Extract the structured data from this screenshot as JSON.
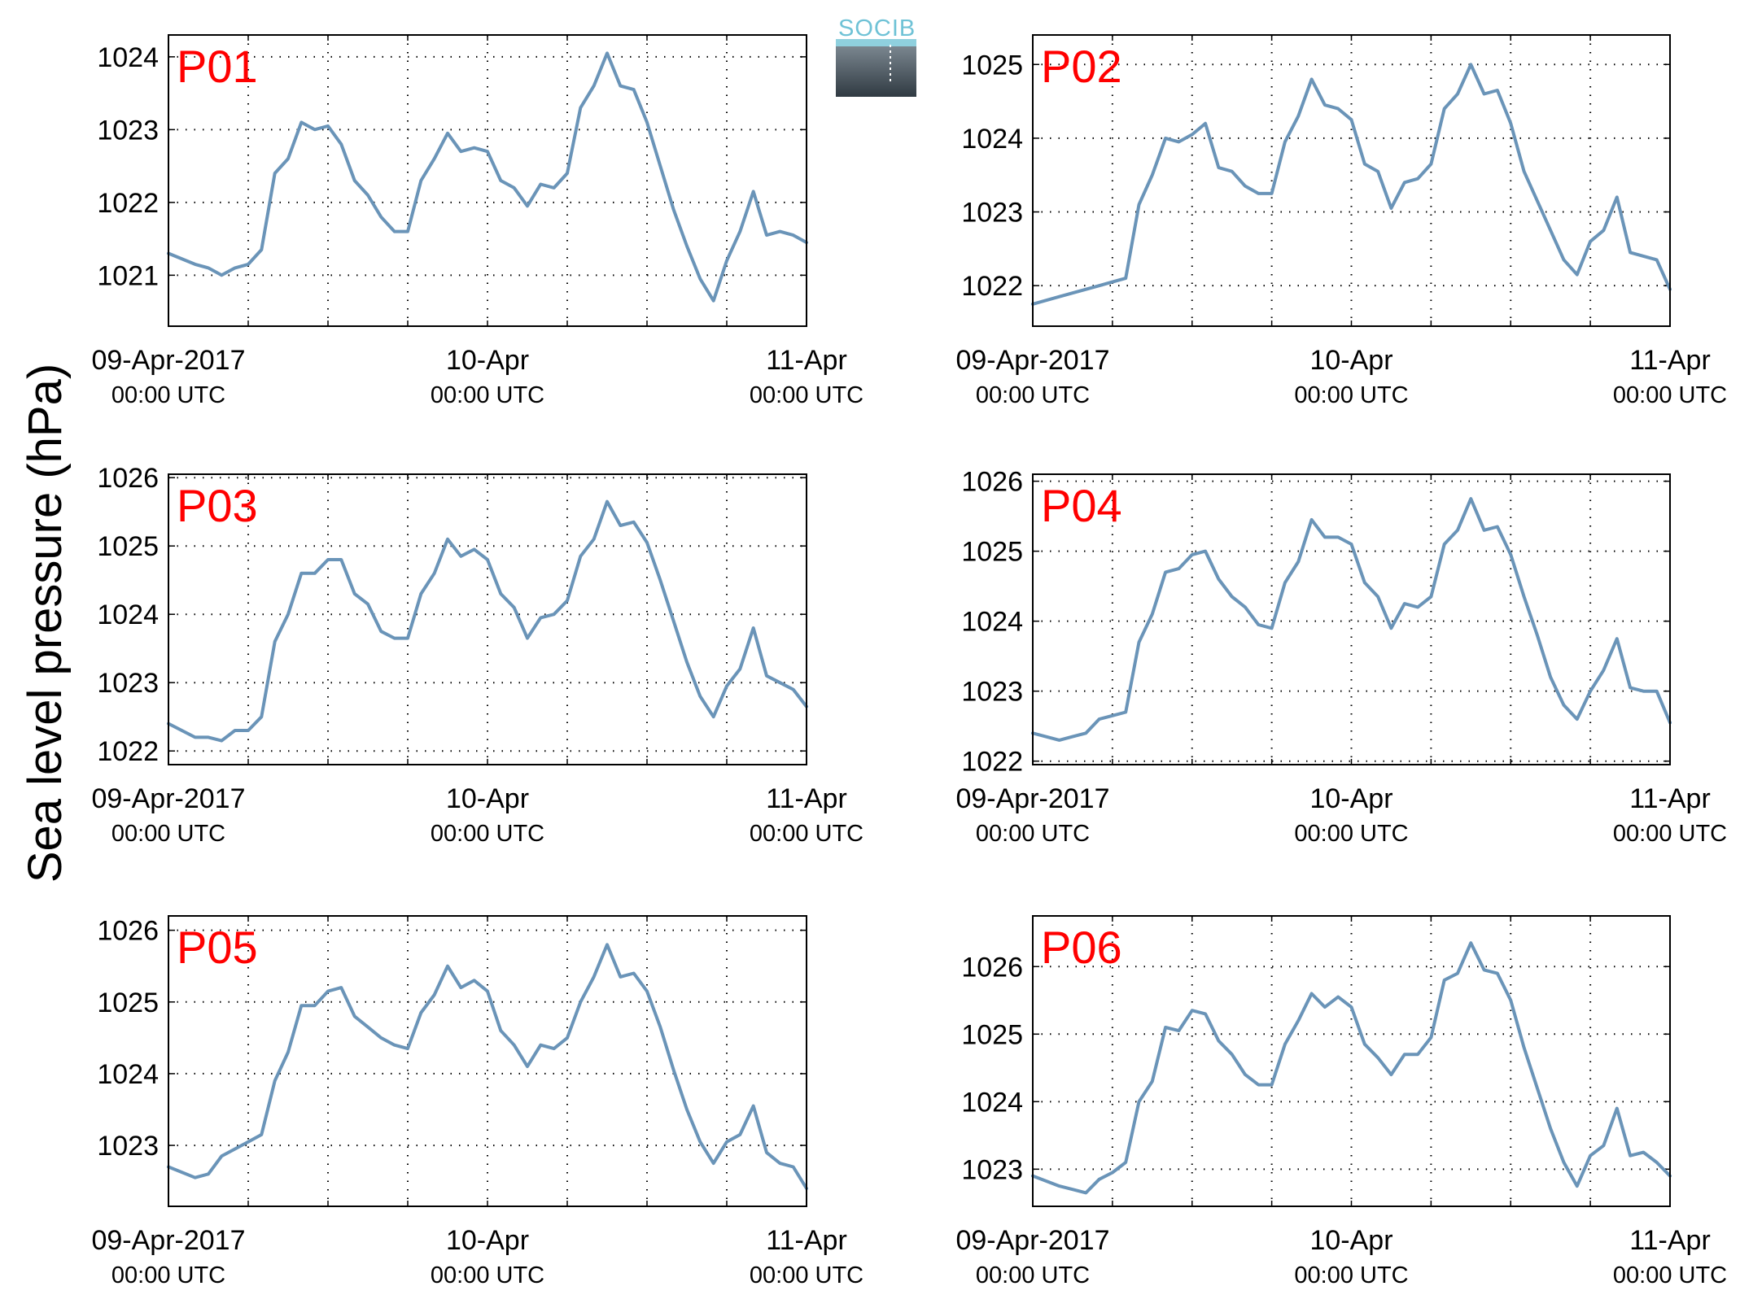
{
  "ylabel": "Sea level pressure (hPa)",
  "logo": {
    "text": "SOCIB"
  },
  "colors": {
    "line": "#6a94b8",
    "label": "#ff0000",
    "grid": "#000000",
    "logo_text": "#6fc2d6"
  },
  "x_ticks": [
    {
      "date": "09-Apr-2017",
      "time": "00:00 UTC"
    },
    {
      "date": "10-Apr",
      "time": "00:00 UTC"
    },
    {
      "date": "11-Apr",
      "time": "00:00 UTC"
    }
  ],
  "chart_data": [
    {
      "type": "line",
      "label": "P01",
      "ylim": [
        1020.3,
        1024.3
      ],
      "yticks": [
        1021,
        1022,
        1023,
        1024
      ],
      "grid": true,
      "x_unit": "hours since 09-Apr-2017 00:00 UTC",
      "x": [
        0,
        2,
        3,
        4,
        5,
        6,
        7,
        8,
        9,
        10,
        11,
        12,
        13,
        14,
        15,
        16,
        17,
        18,
        19,
        20,
        21,
        22,
        23,
        24,
        25,
        26,
        27,
        28,
        29,
        30,
        31,
        32,
        33,
        34,
        35,
        36,
        37,
        38,
        39,
        40,
        41,
        42,
        43,
        44,
        45,
        46,
        47,
        48
      ],
      "y": [
        1021.3,
        1021.15,
        1021.1,
        1021.0,
        1021.1,
        1021.15,
        1021.35,
        1022.4,
        1022.6,
        1023.1,
        1023.0,
        1023.05,
        1022.8,
        1022.3,
        1022.1,
        1021.8,
        1021.6,
        1021.6,
        1022.3,
        1022.6,
        1022.95,
        1022.7,
        1022.75,
        1022.7,
        1022.3,
        1022.2,
        1021.95,
        1022.25,
        1022.2,
        1022.4,
        1023.3,
        1023.6,
        1024.05,
        1023.6,
        1023.55,
        1023.1,
        1022.5,
        1021.9,
        1021.4,
        1020.95,
        1020.65,
        1021.2,
        1021.6,
        1022.15,
        1021.55,
        1021.6,
        1021.55,
        1021.45
      ]
    },
    {
      "type": "line",
      "label": "P02",
      "ylim": [
        1021.45,
        1025.4
      ],
      "yticks": [
        1022,
        1023,
        1024,
        1025
      ],
      "grid": true,
      "x_unit": "hours since 09-Apr-2017 00:00 UTC",
      "x": [
        0,
        2,
        3,
        4,
        5,
        6,
        7,
        8,
        9,
        10,
        11,
        12,
        13,
        14,
        15,
        16,
        17,
        18,
        19,
        20,
        21,
        22,
        23,
        24,
        25,
        26,
        27,
        28,
        29,
        30,
        31,
        32,
        33,
        34,
        35,
        36,
        37,
        38,
        39,
        40,
        41,
        42,
        43,
        44,
        45,
        46,
        47,
        48
      ],
      "y": [
        1021.75,
        1021.85,
        1021.9,
        1021.95,
        1022.0,
        1022.05,
        1022.1,
        1023.1,
        1023.5,
        1024.0,
        1023.95,
        1024.05,
        1024.2,
        1023.6,
        1023.55,
        1023.35,
        1023.25,
        1023.25,
        1023.95,
        1024.3,
        1024.8,
        1024.45,
        1024.4,
        1024.25,
        1023.65,
        1023.55,
        1023.05,
        1023.4,
        1023.45,
        1023.65,
        1024.4,
        1024.6,
        1025.0,
        1024.6,
        1024.65,
        1024.2,
        1023.55,
        1023.15,
        1022.75,
        1022.35,
        1022.15,
        1022.6,
        1022.75,
        1023.2,
        1022.45,
        1022.4,
        1022.35,
        1021.95
      ]
    },
    {
      "type": "line",
      "label": "P03",
      "ylim": [
        1021.8,
        1026.05
      ],
      "yticks": [
        1022,
        1023,
        1024,
        1025,
        1026
      ],
      "grid": true,
      "x_unit": "hours since 09-Apr-2017 00:00 UTC",
      "x": [
        0,
        2,
        3,
        4,
        5,
        6,
        7,
        8,
        9,
        10,
        11,
        12,
        13,
        14,
        15,
        16,
        17,
        18,
        19,
        20,
        21,
        22,
        23,
        24,
        25,
        26,
        27,
        28,
        29,
        30,
        31,
        32,
        33,
        34,
        35,
        36,
        37,
        38,
        39,
        40,
        41,
        42,
        43,
        44,
        45,
        46,
        47,
        48
      ],
      "y": [
        1022.4,
        1022.2,
        1022.2,
        1022.15,
        1022.3,
        1022.3,
        1022.5,
        1023.6,
        1024.0,
        1024.6,
        1024.6,
        1024.8,
        1024.8,
        1024.3,
        1024.15,
        1023.75,
        1023.65,
        1023.65,
        1024.3,
        1024.6,
        1025.1,
        1024.85,
        1024.95,
        1024.8,
        1024.3,
        1024.1,
        1023.65,
        1023.95,
        1024.0,
        1024.2,
        1024.85,
        1025.1,
        1025.65,
        1025.3,
        1025.35,
        1025.05,
        1024.5,
        1023.9,
        1023.3,
        1022.8,
        1022.5,
        1022.95,
        1023.2,
        1023.8,
        1023.1,
        1023.0,
        1022.9,
        1022.65
      ]
    },
    {
      "type": "line",
      "label": "P04",
      "ylim": [
        1021.95,
        1026.1
      ],
      "yticks": [
        1022,
        1023,
        1024,
        1025,
        1026
      ],
      "grid": true,
      "x_unit": "hours since 09-Apr-2017 00:00 UTC",
      "x": [
        0,
        2,
        3,
        4,
        5,
        6,
        7,
        8,
        9,
        10,
        11,
        12,
        13,
        14,
        15,
        16,
        17,
        18,
        19,
        20,
        21,
        22,
        23,
        24,
        25,
        26,
        27,
        28,
        29,
        30,
        31,
        32,
        33,
        34,
        35,
        36,
        37,
        38,
        39,
        40,
        41,
        42,
        43,
        44,
        45,
        46,
        47,
        48
      ],
      "y": [
        1022.4,
        1022.3,
        1022.35,
        1022.4,
        1022.6,
        1022.65,
        1022.7,
        1023.7,
        1024.1,
        1024.7,
        1024.75,
        1024.95,
        1025.0,
        1024.6,
        1024.35,
        1024.2,
        1023.95,
        1023.9,
        1024.55,
        1024.85,
        1025.45,
        1025.2,
        1025.2,
        1025.1,
        1024.55,
        1024.35,
        1023.9,
        1024.25,
        1024.2,
        1024.35,
        1025.1,
        1025.3,
        1025.75,
        1025.3,
        1025.35,
        1024.95,
        1024.35,
        1023.8,
        1023.2,
        1022.8,
        1022.6,
        1023.0,
        1023.3,
        1023.75,
        1023.05,
        1023.0,
        1023.0,
        1022.55
      ]
    },
    {
      "type": "line",
      "label": "P05",
      "ylim": [
        1022.15,
        1026.2
      ],
      "yticks": [
        1023,
        1024,
        1025,
        1026
      ],
      "grid": true,
      "x_unit": "hours since 09-Apr-2017 00:00 UTC",
      "x": [
        0,
        2,
        3,
        4,
        5,
        6,
        7,
        8,
        9,
        10,
        11,
        12,
        13,
        14,
        15,
        16,
        17,
        18,
        19,
        20,
        21,
        22,
        23,
        24,
        25,
        26,
        27,
        28,
        29,
        30,
        31,
        32,
        33,
        34,
        35,
        36,
        37,
        38,
        39,
        40,
        41,
        42,
        43,
        44,
        45,
        46,
        47,
        48
      ],
      "y": [
        1022.7,
        1022.55,
        1022.6,
        1022.85,
        1022.95,
        1023.05,
        1023.15,
        1023.9,
        1024.3,
        1024.95,
        1024.95,
        1025.15,
        1025.2,
        1024.8,
        1024.65,
        1024.5,
        1024.4,
        1024.35,
        1024.85,
        1025.1,
        1025.5,
        1025.2,
        1025.3,
        1025.15,
        1024.6,
        1024.4,
        1024.1,
        1024.4,
        1024.35,
        1024.5,
        1025.0,
        1025.35,
        1025.8,
        1025.35,
        1025.4,
        1025.15,
        1024.65,
        1024.05,
        1023.5,
        1023.05,
        1022.75,
        1023.05,
        1023.15,
        1023.55,
        1022.9,
        1022.75,
        1022.7,
        1022.4
      ]
    },
    {
      "type": "line",
      "label": "P06",
      "ylim": [
        1022.45,
        1026.75
      ],
      "yticks": [
        1023,
        1024,
        1025,
        1026
      ],
      "grid": true,
      "x_unit": "hours since 09-Apr-2017 00:00 UTC",
      "x": [
        0,
        2,
        3,
        4,
        5,
        6,
        7,
        8,
        9,
        10,
        11,
        12,
        13,
        14,
        15,
        16,
        17,
        18,
        19,
        20,
        21,
        22,
        23,
        24,
        25,
        26,
        27,
        28,
        29,
        30,
        31,
        32,
        33,
        34,
        35,
        36,
        37,
        38,
        39,
        40,
        41,
        42,
        43,
        44,
        45,
        46,
        47,
        48
      ],
      "y": [
        1022.9,
        1022.75,
        1022.7,
        1022.65,
        1022.85,
        1022.95,
        1023.1,
        1024.0,
        1024.3,
        1025.1,
        1025.05,
        1025.35,
        1025.3,
        1024.9,
        1024.7,
        1024.4,
        1024.25,
        1024.25,
        1024.85,
        1025.2,
        1025.6,
        1025.4,
        1025.55,
        1025.4,
        1024.85,
        1024.65,
        1024.4,
        1024.7,
        1024.7,
        1024.95,
        1025.8,
        1025.9,
        1026.35,
        1025.95,
        1025.9,
        1025.5,
        1024.8,
        1024.2,
        1023.6,
        1023.1,
        1022.75,
        1023.2,
        1023.35,
        1023.9,
        1023.2,
        1023.25,
        1023.1,
        1022.9
      ]
    }
  ]
}
